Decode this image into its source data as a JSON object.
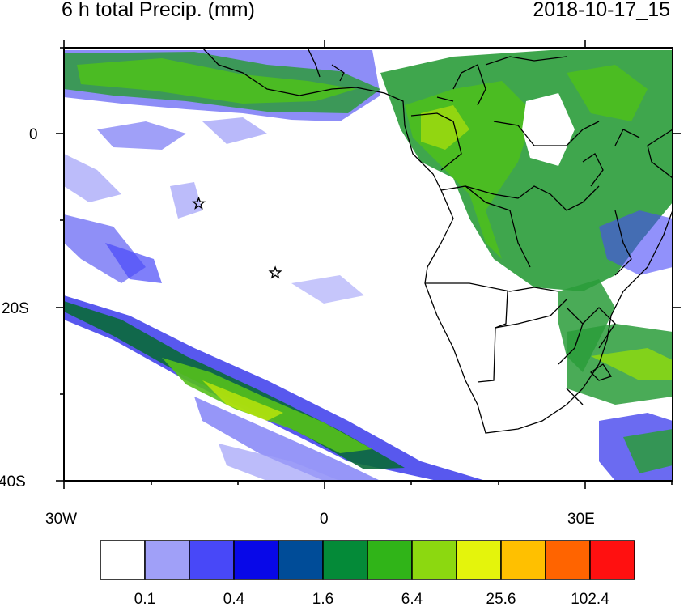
{
  "title": "6 h total Precip. (mm)",
  "timestamp": "2018-10-17_15",
  "axes": {
    "lat_ticks": [
      {
        "value": 0,
        "label": "0"
      },
      {
        "value": -20,
        "label": "20S"
      },
      {
        "value": -40,
        "label": "40S"
      }
    ],
    "lon_ticks": [
      {
        "value": -30,
        "label": "30W"
      },
      {
        "value": 0,
        "label": "0"
      },
      {
        "value": 30,
        "label": "30E"
      }
    ],
    "lon_range": [
      -30,
      40
    ],
    "lat_range": [
      -40,
      10
    ]
  },
  "markers": [
    {
      "type": "star",
      "lon": -14.5,
      "lat": -8
    },
    {
      "type": "star",
      "lon": -5.7,
      "lat": -16
    }
  ],
  "colorbar": {
    "colors": [
      "#ffffff",
      "#a0a0f8",
      "#4848f8",
      "#0808e8",
      "#004c98",
      "#048a38",
      "#30b418",
      "#8cd810",
      "#e4f40c",
      "#ffc000",
      "#ff6400",
      "#ff1010"
    ],
    "labels": [
      {
        "after_box": 1,
        "text": "0.1"
      },
      {
        "after_box": 3,
        "text": "0.4"
      },
      {
        "after_box": 5,
        "text": "1.6"
      },
      {
        "after_box": 7,
        "text": "6.4"
      },
      {
        "after_box": 9,
        "text": "25.6"
      },
      {
        "after_box": 11,
        "text": "102.4"
      }
    ]
  }
}
